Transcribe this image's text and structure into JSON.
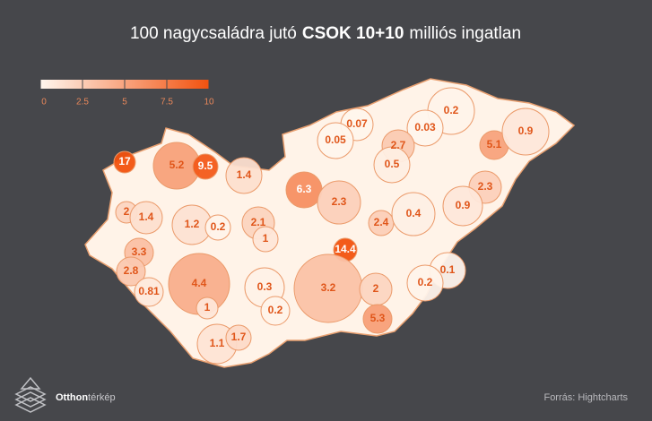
{
  "chart_data": {
    "type": "map",
    "title": [
      "100 nagycsaládra jutó",
      "CSOK 10+10",
      "milliós ingatlan"
    ],
    "values": [
      0.07,
      0.2,
      0.05,
      0.03,
      2.7,
      5.1,
      0.9,
      17,
      5.2,
      9.5,
      1.4,
      0.5,
      6.3,
      2.3,
      2.3,
      0.9,
      2,
      1.4,
      1.2,
      0.2,
      2.1,
      2.4,
      0.4,
      1,
      14.4,
      3.3,
      2.8,
      0.1,
      4.4,
      0.3,
      3.2,
      0.81,
      0.2,
      2,
      1,
      0.2,
      5.3,
      1.1,
      1.7
    ],
    "colorlim": [
      0,
      10
    ],
    "colorticks": [
      0,
      2.5,
      5,
      7.5,
      10
    ],
    "color_min": "#fff6ee",
    "color_max": "#f2520f",
    "credits": {
      "brand": [
        "Otthon",
        "térkép"
      ],
      "source": "Forrás: Hightcharts"
    }
  }
}
